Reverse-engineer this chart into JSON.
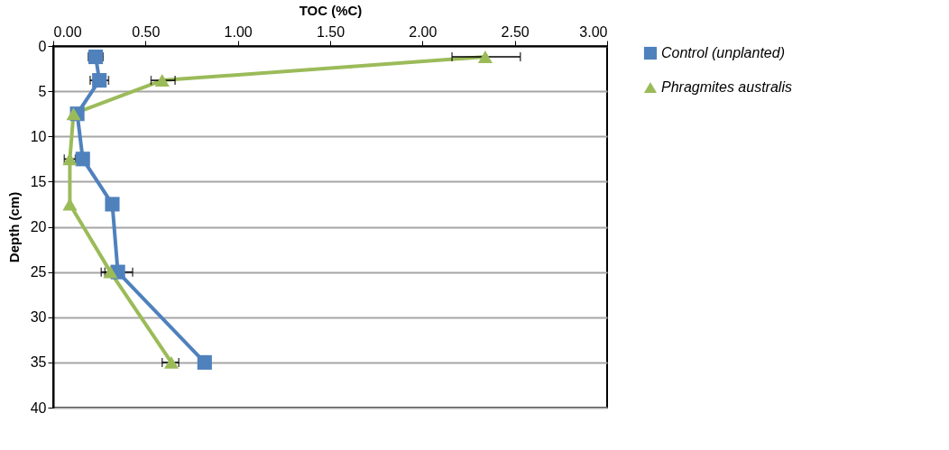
{
  "chart_data": {
    "type": "line",
    "xlabel": "TOC (%C)",
    "ylabel": "Depth (cm)",
    "xlim": [
      0,
      3
    ],
    "xticks": [
      {
        "value": 0,
        "label": "0.00"
      },
      {
        "value": 0.5,
        "label": "0.50"
      },
      {
        "value": 1,
        "label": "1.00"
      },
      {
        "value": 1.5,
        "label": "1.50"
      },
      {
        "value": 2,
        "label": "2.00"
      },
      {
        "value": 2.5,
        "label": "2.50"
      },
      {
        "value": 3,
        "label": "3.00"
      }
    ],
    "ylim": [
      40,
      0
    ],
    "yticks": [
      0,
      5,
      10,
      15,
      20,
      25,
      30,
      35,
      40
    ],
    "grid": "y",
    "legend": "right",
    "series": [
      {
        "name": "Control (unplanted)",
        "color": "#4f81bd",
        "marker": "square",
        "x": [
          0.23,
          0.25,
          0.13,
          0.16,
          0.32,
          0.35,
          0.82
        ],
        "values": [
          1.2,
          3.8,
          7.5,
          12.5,
          17.5,
          25,
          35
        ],
        "xerrors": [
          0.04,
          0.05,
          null,
          null,
          null,
          [
            0.26,
            0.43
          ],
          null
        ]
      },
      {
        "name": "Phragmites australis",
        "color": "#9bbb59",
        "marker": "triangle",
        "x": [
          2.34,
          0.59,
          0.11,
          0.09,
          0.09,
          0.31,
          0.64
        ],
        "values": [
          1.2,
          3.8,
          7.5,
          12.5,
          17.5,
          25,
          35
        ],
        "xerrors": [
          [
            2.16,
            2.53
          ],
          [
            0.53,
            0.66
          ],
          null,
          [
            0.06,
            0.12
          ],
          null,
          [
            0.28,
            0.34
          ],
          [
            0.59,
            0.68
          ]
        ]
      }
    ]
  }
}
